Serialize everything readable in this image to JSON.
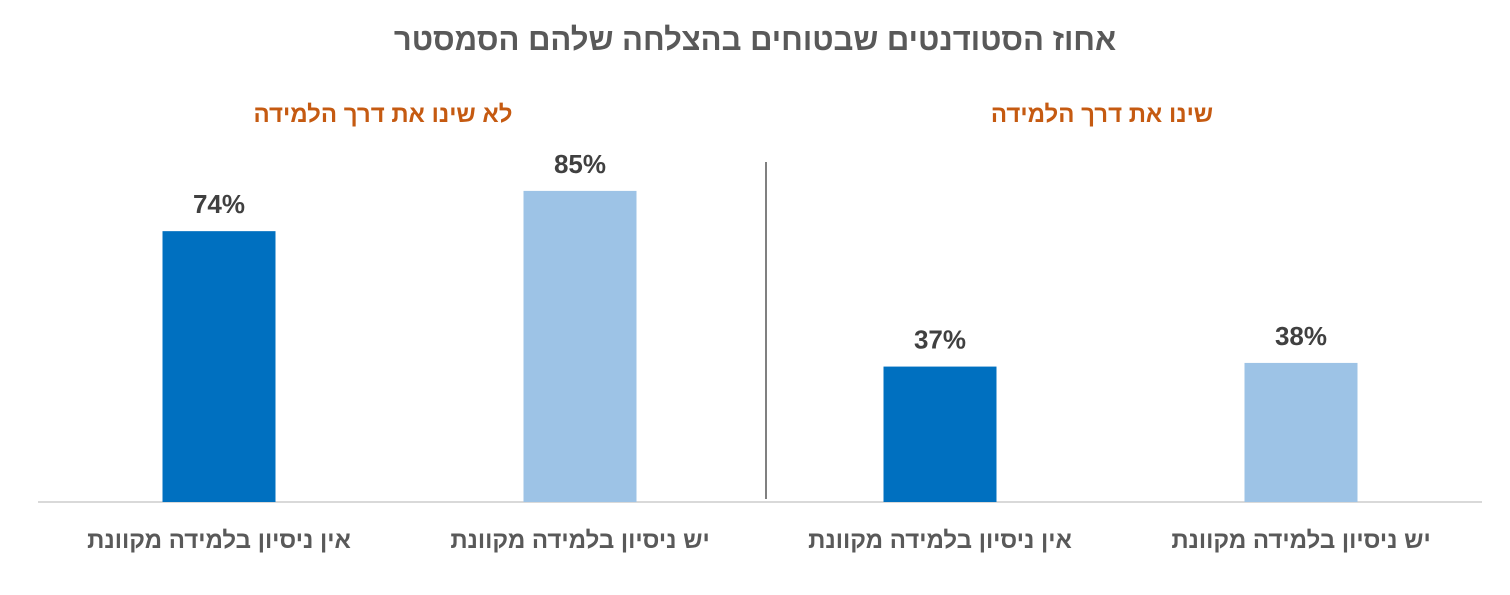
{
  "chart_data": {
    "type": "bar",
    "title": "אחוז הסטודנטים שבטוחים בהצלחה שלהם הסמסטר",
    "ylim": [
      0,
      100
    ],
    "unit": "%",
    "grid": false,
    "groups": [
      {
        "name": "לא שינו את דרך הלמידה",
        "categories": [
          "אין ניסיון בלמידה מקוונת",
          "יש ניסיון בלמידה מקוונת"
        ],
        "values": [
          74,
          85
        ],
        "labels": [
          "74%",
          "85%"
        ]
      },
      {
        "name": "שינו את דרך הלמידה",
        "categories": [
          "אין ניסיון בלמידה מקוונת",
          "יש ניסיון בלמידה מקוונת"
        ],
        "values": [
          37,
          38
        ],
        "labels": [
          "37%",
          "38%"
        ]
      }
    ]
  },
  "colors": {
    "no_experience": "#0070c0",
    "has_experience": "#9dc3e6",
    "title": "#595959",
    "group_title": "#c55a11",
    "value_label": "#404040",
    "axis": "#d9d9d9",
    "divider": "#000000"
  }
}
